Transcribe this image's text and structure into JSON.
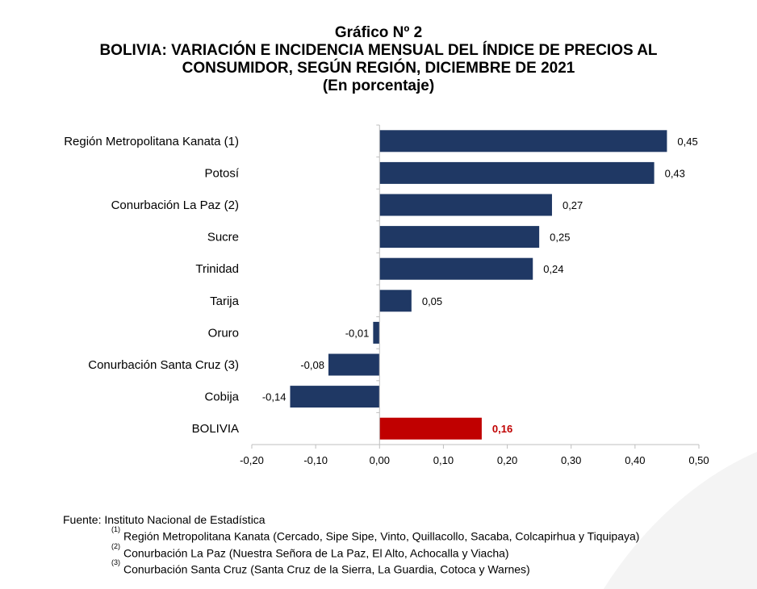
{
  "title": {
    "line1": "Gráfico Nº 2",
    "line2": "BOLIVIA: VARIACIÓN E INCIDENCIA MENSUAL DEL ÍNDICE DE PRECIOS AL",
    "line3": "CONSUMIDOR, SEGÚN REGIÓN, DICIEMBRE DE 2021",
    "line4": "(En porcentaje)"
  },
  "chart_data": {
    "type": "bar",
    "orientation": "horizontal",
    "categories": [
      "Región Metropolitana Kanata (1)",
      "Potosí",
      "Conurbación La Paz (2)",
      "Sucre",
      "Trinidad",
      "Tarija",
      "Oruro",
      "Conurbación Santa Cruz (3)",
      "Cobija",
      "BOLIVIA"
    ],
    "values": [
      0.45,
      0.43,
      0.27,
      0.25,
      0.24,
      0.05,
      -0.01,
      -0.08,
      -0.14,
      0.16
    ],
    "value_labels": [
      "0,45",
      "0,43",
      "0,27",
      "0,25",
      "0,24",
      "0,05",
      "-0,01",
      "-0,08",
      "-0,14",
      "0,16"
    ],
    "xlim": [
      -0.2,
      0.5
    ],
    "xticks": [
      "-0,20",
      "-0,10",
      "0,00",
      "0,10",
      "0,20",
      "0,30",
      "0,40",
      "0,50"
    ],
    "colors": {
      "bar": "#1f3864",
      "highlight": "#c00000"
    },
    "highlight_category": "BOLIVIA",
    "grid": false,
    "legend": "none"
  },
  "footer": {
    "source": "Fuente: Instituto Nacional de Estadística",
    "notes": [
      {
        "marker": "(1)",
        "text": "Región Metropolitana Kanata (Cercado, Sipe Sipe, Vinto, Quillacollo, Sacaba, Colcapirhua y Tiquipaya)"
      },
      {
        "marker": "(2)",
        "text": "Conurbación La Paz (Nuestra Señora de La Paz, El Alto, Achocalla y Viacha)"
      },
      {
        "marker": "(3)",
        "text": "Conurbación Santa Cruz (Santa Cruz de la Sierra, La Guardia, Cotoca y Warnes)"
      }
    ]
  }
}
